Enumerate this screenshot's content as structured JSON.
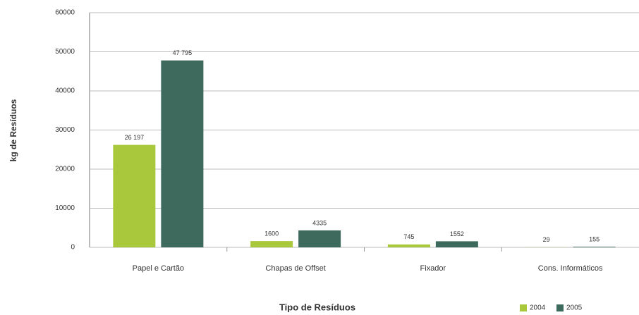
{
  "chart_data": {
    "type": "bar",
    "categories": [
      "Papel e Cartão",
      "Chapas de Offset",
      "Fixador",
      "Cons. Informáticos"
    ],
    "series": [
      {
        "name": "2004",
        "color": "#a9c83c",
        "values": [
          26197,
          1600,
          745,
          29
        ],
        "value_labels": [
          "26 197",
          "1600",
          "745",
          "29"
        ]
      },
      {
        "name": "2005",
        "color": "#3e6a5d",
        "values": [
          47795,
          4335,
          1552,
          155
        ],
        "value_labels": [
          "47 795",
          "4335",
          "1552",
          "155"
        ]
      }
    ],
    "ylabel": "kg de Resíduos",
    "xlabel": "Tipo de Resíduos",
    "ylim": [
      0,
      60000
    ],
    "yticks": [
      0,
      10000,
      20000,
      30000,
      40000,
      50000,
      60000
    ],
    "grid": true,
    "legend": "bottom-right"
  }
}
